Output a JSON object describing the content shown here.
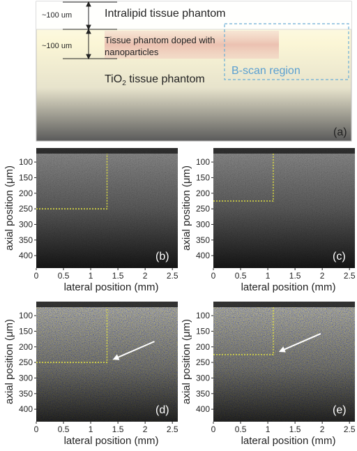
{
  "schematic": {
    "dim_top": "~100 um",
    "dim_mid": "~100 um",
    "layer_top": "Intralipid tissue phantom",
    "layer_mid_line1": "Tissue phantom doped with",
    "layer_mid_line2": "nanoparticles",
    "layer_bottom_main": "TiO",
    "layer_bottom_sub": "2",
    "layer_bottom_rest": " tissue phantom",
    "bscan": "B-scan region",
    "panel_label": "(a)"
  },
  "colors": {
    "bscan_outline": "#6aaed6",
    "bscan_text": "#5a9fd0",
    "boundary_dots": "#e8e840",
    "arrow": "#ffffff"
  },
  "panels": [
    {
      "label": "(b)",
      "type": "grayscale",
      "x_boundary_mm": 1.3,
      "depth_um": 250
    },
    {
      "label": "(c)",
      "type": "grayscale",
      "x_boundary_mm": 1.1,
      "depth_um": 225
    },
    {
      "label": "(d)",
      "type": "color",
      "x_boundary_mm": 1.3,
      "depth_um": 250,
      "arrow": true
    },
    {
      "label": "(e)",
      "type": "color",
      "x_boundary_mm": 1.1,
      "depth_um": 225,
      "arrow": true
    }
  ],
  "axes": {
    "ylabel": "axial position (μm)",
    "xlabel": "lateral position (mm)",
    "yticks": [
      100,
      150,
      200,
      250,
      300,
      350,
      400
    ],
    "xticks": [
      "0",
      "0.5",
      "1",
      "1.5",
      "2",
      "2.5"
    ],
    "xtick_values": [
      0,
      0.5,
      1,
      1.5,
      2,
      2.5
    ],
    "xlim": [
      0,
      2.6
    ],
    "ylim": [
      55,
      440
    ]
  }
}
